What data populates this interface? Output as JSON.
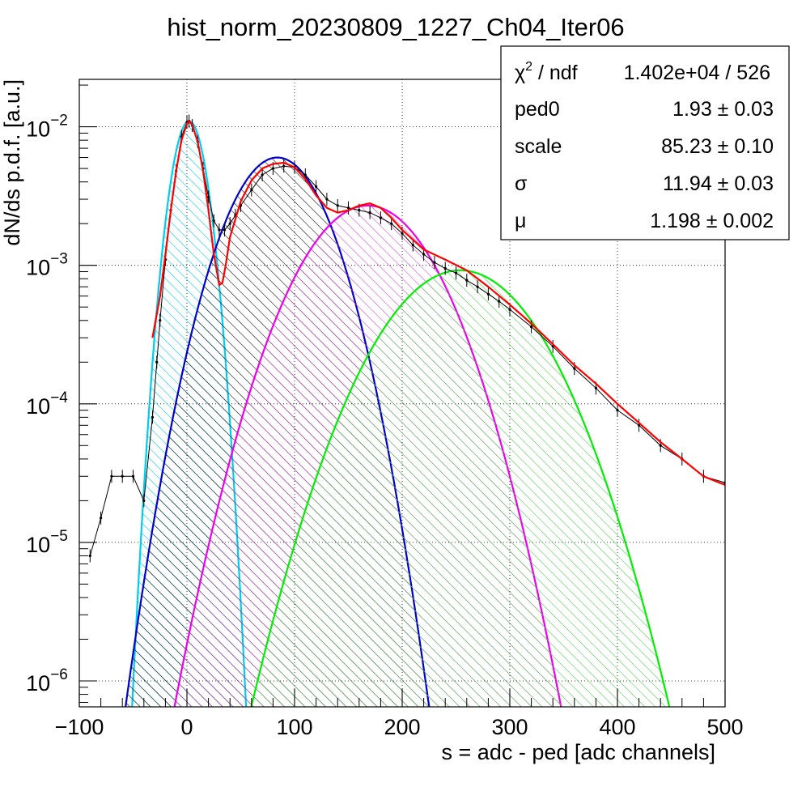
{
  "chart_data": {
    "type": "line",
    "title": "hist_norm_20230809_1227_Ch04_Iter06",
    "xlabel": "s = adc - ped [adc channels]",
    "ylabel": "dN/ds p.d.f. [a.u.]",
    "xlim": [
      -100,
      500
    ],
    "ylim": [
      6.5e-07,
      0.022
    ],
    "yscale": "log",
    "grid": true,
    "x_ticks": [
      "−100",
      "0",
      "100",
      "200",
      "300",
      "400",
      "500"
    ],
    "y_ticks": [
      {
        "mantissa": "10",
        "exp": "−6"
      },
      {
        "mantissa": "10",
        "exp": "−5"
      },
      {
        "mantissa": "10",
        "exp": "−4"
      },
      {
        "mantissa": "10",
        "exp": "−3"
      },
      {
        "mantissa": "10",
        "exp": "−2"
      }
    ],
    "fit_params": {
      "ped0": 1.93,
      "scale": 85.23,
      "sigma": 11.94,
      "mu": 1.198
    },
    "series": [
      {
        "role": "data",
        "color": "#000000",
        "x": [
          -90,
          -80,
          -70,
          -60,
          -50,
          -40,
          -32,
          -28,
          -25,
          -20,
          -15,
          -10,
          -5,
          0,
          2,
          5,
          10,
          15,
          20,
          25,
          30,
          35,
          40,
          45,
          50,
          60,
          70,
          80,
          90,
          100,
          110,
          120,
          130,
          140,
          150,
          160,
          170,
          180,
          190,
          200,
          210,
          220,
          230,
          240,
          250,
          260,
          270,
          280,
          290,
          300,
          320,
          340,
          360,
          380,
          400,
          420,
          440,
          460,
          480,
          500
        ],
        "y": [
          8e-06,
          1.5e-05,
          3e-05,
          3e-05,
          3e-05,
          2e-05,
          8e-05,
          0.0002,
          0.0004,
          0.0011,
          0.0025,
          0.0048,
          0.0085,
          0.0108,
          0.011,
          0.0102,
          0.0078,
          0.005,
          0.0031,
          0.0021,
          0.0018,
          0.0018,
          0.002,
          0.0023,
          0.0027,
          0.0035,
          0.0045,
          0.005,
          0.0052,
          0.0051,
          0.0045,
          0.0037,
          0.003,
          0.0027,
          0.0026,
          0.0025,
          0.0024,
          0.0022,
          0.002,
          0.0017,
          0.0014,
          0.0012,
          0.00105,
          0.00095,
          0.00088,
          0.00078,
          0.0007,
          0.00062,
          0.00055,
          0.00048,
          0.00036,
          0.00026,
          0.00018,
          0.00013,
          9e-05,
          7e-05,
          5e-05,
          4e-05,
          3e-05,
          2.7e-05
        ]
      },
      {
        "role": "total-fit",
        "color": "#ff0000",
        "x": [
          -32,
          -25,
          -20,
          -15,
          -10,
          -5,
          0,
          2,
          5,
          10,
          15,
          20,
          25,
          30,
          33,
          36,
          40,
          50,
          60,
          70,
          80,
          90,
          100,
          110,
          120,
          130,
          140,
          150,
          160,
          170,
          180,
          190,
          200,
          220,
          240,
          260,
          280,
          300,
          320,
          340,
          360,
          380,
          400,
          420,
          440,
          460,
          480,
          500
        ],
        "y": [
          0.0003,
          0.0006,
          0.0012,
          0.0025,
          0.0048,
          0.008,
          0.0105,
          0.011,
          0.0103,
          0.0078,
          0.0048,
          0.0025,
          0.0012,
          0.00072,
          0.00075,
          0.001,
          0.0016,
          0.0029,
          0.0041,
          0.005,
          0.0054,
          0.0055,
          0.0051,
          0.0042,
          0.0032,
          0.0026,
          0.0024,
          0.0025,
          0.0027,
          0.0028,
          0.0026,
          0.0022,
          0.0018,
          0.0013,
          0.0011,
          0.00092,
          0.0007,
          0.00052,
          0.00038,
          0.00027,
          0.00019,
          0.00014,
          0.0001,
          7.3e-05,
          5.3e-05,
          4e-05,
          3e-05,
          2.6e-05
        ]
      },
      {
        "role": "peak-0",
        "color": "#00ccee",
        "mu": 2,
        "sigma": 12,
        "amp": 0.011
      },
      {
        "role": "peak-1",
        "color": "#0000cc",
        "mu": 84,
        "sigma": 33,
        "amp": 0.006
      },
      {
        "role": "peak-2",
        "color": "#ee00ee",
        "mu": 168,
        "sigma": 44,
        "amp": 0.0027
      },
      {
        "role": "peak-3",
        "color": "#00ee00",
        "mu": 254,
        "sigma": 51,
        "amp": 0.00092
      }
    ]
  },
  "stats_box": {
    "chi_label": "χ",
    "chi_sup": "2",
    "chi_rest": " / ndf",
    "chi_value": "1.402e+04 / 526",
    "rows": [
      {
        "label": "ped0",
        "value": "1.93 ± 0.03"
      },
      {
        "label": "scale",
        "value": "85.23 ± 0.10"
      },
      {
        "label": "σ",
        "value": "11.94 ± 0.03"
      },
      {
        "label": "μ",
        "value": "1.198 ± 0.002"
      }
    ]
  }
}
